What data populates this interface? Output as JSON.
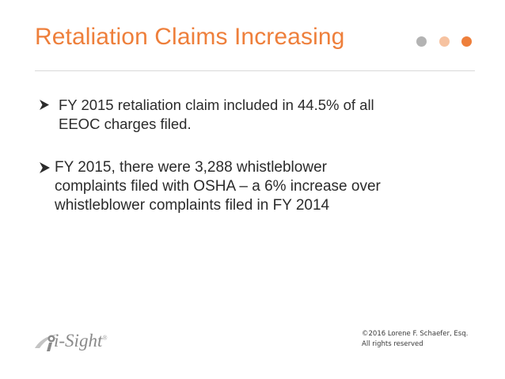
{
  "slide": {
    "title": "Retaliation Claims Increasing",
    "title_color": "#ee7f3b",
    "decor_dots": [
      {
        "name": "gray-dot",
        "color": "#b3b3b3"
      },
      {
        "name": "light-orange-dot",
        "color": "#f6c2a0"
      },
      {
        "name": "orange-dot",
        "color": "#ee7f3b"
      }
    ],
    "bullet_icon": "arrowhead-bullet-icon",
    "bullets": [
      {
        "lines": [
          "FY 2015 retaliation claim included in 44.5% of all",
          "EEOC charges filed."
        ]
      },
      {
        "lines": [
          "FY 2015, there were 3,288 whistleblower",
          "complaints filed with OSHA – a 6% increase over",
          "whistleblower complaints filed in FY 2014"
        ]
      }
    ],
    "logo": {
      "text": "i-Sight",
      "registered_mark": "®",
      "icon": "i-sight-logo-icon"
    },
    "footer": {
      "copyright_line1": "©2016 Lorene F. Schaefer, Esq.",
      "copyright_line2": "All rights reserved"
    }
  }
}
